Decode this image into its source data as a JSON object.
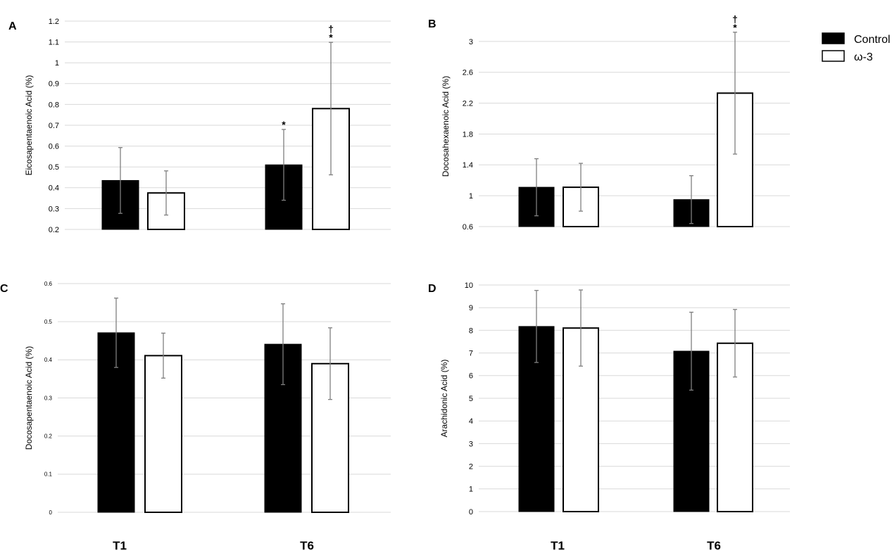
{
  "legend": {
    "items": [
      {
        "label": "Control",
        "swatch": "filled",
        "color": "#000000"
      },
      {
        "label": "ω-3",
        "swatch": "open",
        "color": "#ffffff"
      }
    ]
  },
  "x_labels": [
    "T1",
    "T6"
  ],
  "colors": {
    "control": "#000000",
    "omega3": "#ffffff",
    "gridline": "#d9d9d9",
    "errorbar": "#7f7f7f"
  },
  "chart_data": [
    {
      "type": "bar",
      "panel": "A",
      "ylabel": "Eicosapentaenoic Acid (%)",
      "categories": [
        "T1",
        "T6"
      ],
      "ylim": [
        0.2,
        1.2
      ],
      "yticks": [
        "0.2",
        "0.3",
        "0.4",
        "0.5",
        "0.6",
        "0.7",
        "0.8",
        "0.9",
        "1",
        "1.1",
        "1.2"
      ],
      "grid": true,
      "series": [
        {
          "name": "Control",
          "values": [
            0.435,
            0.51
          ],
          "errors": [
            0.158,
            0.17
          ],
          "annotations": [
            "",
            "*"
          ]
        },
        {
          "name": "ω-3",
          "values": [
            0.375,
            0.78
          ],
          "errors": [
            0.106,
            0.318
          ],
          "annotations": [
            "",
            "†\n*"
          ]
        }
      ]
    },
    {
      "type": "bar",
      "panel": "B",
      "ylabel": "Docosahexaenoic Acid (%)",
      "categories": [
        "T1",
        "T6"
      ],
      "ylim": [
        0.6,
        3.2
      ],
      "yticks": [
        "0.6",
        "1",
        "1.4",
        "1.8",
        "2.2",
        "2.6",
        "3"
      ],
      "grid": true,
      "series": [
        {
          "name": "Control",
          "values": [
            1.11,
            0.95
          ],
          "errors": [
            0.37,
            0.31
          ],
          "annotations": [
            "",
            ""
          ]
        },
        {
          "name": "ω-3",
          "values": [
            1.11,
            2.33
          ],
          "errors": [
            0.31,
            0.79
          ],
          "annotations": [
            "",
            "†\n*"
          ]
        }
      ]
    },
    {
      "type": "bar",
      "panel": "C",
      "ylabel": "Docosapentaenoic Acid (%)",
      "categories": [
        "T1",
        "T6"
      ],
      "ylim": [
        0,
        0.6
      ],
      "yticks": [
        "0",
        "0.1",
        "0.2",
        "0.3",
        "0.4",
        "0.5",
        "0.6"
      ],
      "grid": true,
      "series": [
        {
          "name": "Control",
          "values": [
            0.471,
            0.441
          ],
          "errors": [
            0.091,
            0.106
          ],
          "annotations": [
            "",
            ""
          ]
        },
        {
          "name": "ω-3",
          "values": [
            0.411,
            0.39
          ],
          "errors": [
            0.059,
            0.094
          ],
          "annotations": [
            "",
            ""
          ]
        }
      ]
    },
    {
      "type": "bar",
      "panel": "D",
      "ylabel": "Arachidonic Acid (%)",
      "categories": [
        "T1",
        "T6"
      ],
      "ylim": [
        0,
        10
      ],
      "yticks": [
        "0",
        "1",
        "2",
        "3",
        "4",
        "5",
        "6",
        "7",
        "8",
        "9",
        "10"
      ],
      "grid": true,
      "series": [
        {
          "name": "Control",
          "values": [
            8.17,
            7.08
          ],
          "errors": [
            1.59,
            1.72
          ],
          "annotations": [
            "",
            ""
          ]
        },
        {
          "name": "ω-3",
          "values": [
            8.1,
            7.43
          ],
          "errors": [
            1.68,
            1.49
          ],
          "annotations": [
            "",
            ""
          ]
        }
      ]
    }
  ]
}
